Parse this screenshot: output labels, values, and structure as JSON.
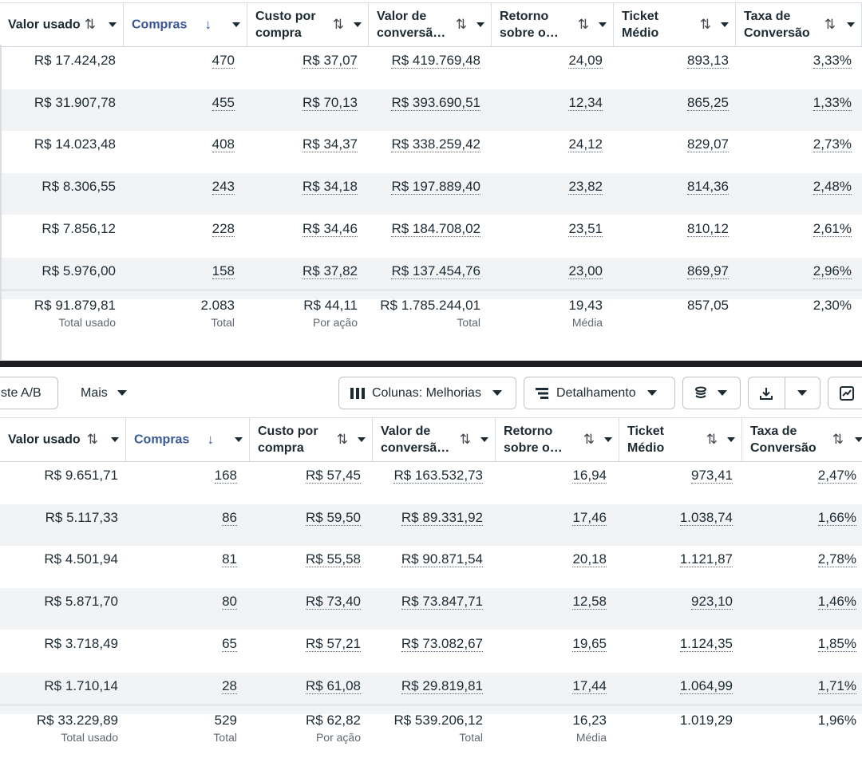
{
  "colors": {
    "accent": "#385898",
    "text": "#1c2b33",
    "muted": "#606770",
    "stripe": "#f2f3f5"
  },
  "panel1": {
    "headers": [
      {
        "label": "Valor usado",
        "sort": "⇅"
      },
      {
        "label": "Compras",
        "sort": "↓",
        "active": true
      },
      {
        "label": "Custo por\ncompra",
        "sort": "⇅"
      },
      {
        "label": "Valor de\nconversã…",
        "sort": "⇅"
      },
      {
        "label": "Retorno\nsobre o…",
        "sort": "⇅"
      },
      {
        "label": "Ticket\nMédio",
        "sort": "⇅"
      },
      {
        "label": "Taxa de\nConversão",
        "sort": "⇅"
      }
    ],
    "rows": [
      [
        "R$ 17.424,28",
        "470",
        "R$ 37,07",
        "R$ 419.769,48",
        "24,09",
        "893,13",
        "3,33%"
      ],
      [
        "R$ 31.907,78",
        "455",
        "R$ 70,13",
        "R$ 393.690,51",
        "12,34",
        "865,25",
        "1,33%"
      ],
      [
        "R$ 14.023,48",
        "408",
        "R$ 34,37",
        "R$ 338.259,42",
        "24,12",
        "829,07",
        "2,73%"
      ],
      [
        "R$ 8.306,55",
        "243",
        "R$ 34,18",
        "R$ 197.889,40",
        "23,82",
        "814,36",
        "2,48%"
      ],
      [
        "R$ 7.856,12",
        "228",
        "R$ 34,46",
        "R$ 184.708,02",
        "23,51",
        "810,12",
        "2,61%"
      ],
      [
        "R$ 5.976,00",
        "158",
        "R$ 37,82",
        "R$ 137.454,76",
        "23,00",
        "869,97",
        "2,96%"
      ]
    ],
    "totals": [
      {
        "value": "R$ 91.879,81",
        "sub": "Total usado"
      },
      {
        "value": "2.083",
        "sub": "Total"
      },
      {
        "value": "R$ 44,11",
        "sub": "Por ação"
      },
      {
        "value": "R$ 1.785.244,01",
        "sub": "Total"
      },
      {
        "value": "19,43",
        "sub": "Média"
      },
      {
        "value": "857,05",
        "sub": ""
      },
      {
        "value": "2,30%",
        "sub": ""
      }
    ]
  },
  "toolbar": {
    "ab_test_label": "ste A/B",
    "more_label": "Mais",
    "columns_label": "Colunas: Melhorias",
    "breakdown_label": "Detalhamento"
  },
  "panel2": {
    "headers": [
      {
        "label": "Valor usado",
        "sort": "⇅"
      },
      {
        "label": "Compras",
        "sort": "↓",
        "active": true
      },
      {
        "label": "Custo por\ncompra",
        "sort": "⇅"
      },
      {
        "label": "Valor de\nconversã…",
        "sort": "⇅"
      },
      {
        "label": "Retorno\nsobre o…",
        "sort": "⇅"
      },
      {
        "label": "Ticket\nMédio",
        "sort": "⇅"
      },
      {
        "label": "Taxa de\nConversão",
        "sort": "⇅"
      }
    ],
    "rows": [
      [
        "R$ 9.651,71",
        "168",
        "R$ 57,45",
        "R$ 163.532,73",
        "16,94",
        "973,41",
        "2,47%"
      ],
      [
        "R$ 5.117,33",
        "86",
        "R$ 59,50",
        "R$ 89.331,92",
        "17,46",
        "1.038,74",
        "1,66%"
      ],
      [
        "R$ 4.501,94",
        "81",
        "R$ 55,58",
        "R$ 90.871,54",
        "20,18",
        "1.121,87",
        "2,78%"
      ],
      [
        "R$ 5.871,70",
        "80",
        "R$ 73,40",
        "R$ 73.847,71",
        "12,58",
        "923,10",
        "1,46%"
      ],
      [
        "R$ 3.718,49",
        "65",
        "R$ 57,21",
        "R$ 73.082,67",
        "19,65",
        "1.124,35",
        "1,85%"
      ],
      [
        "R$ 1.710,14",
        "28",
        "R$ 61,08",
        "R$ 29.819,81",
        "17,44",
        "1.064,99",
        "1,71%"
      ]
    ],
    "totals": [
      {
        "value": "R$ 33.229,89",
        "sub": "Total usado"
      },
      {
        "value": "529",
        "sub": "Total"
      },
      {
        "value": "R$ 62,82",
        "sub": "Por ação"
      },
      {
        "value": "R$ 539.206,12",
        "sub": "Total"
      },
      {
        "value": "16,23",
        "sub": "Média"
      },
      {
        "value": "1.019,29",
        "sub": ""
      },
      {
        "value": "1,96%",
        "sub": ""
      }
    ]
  }
}
